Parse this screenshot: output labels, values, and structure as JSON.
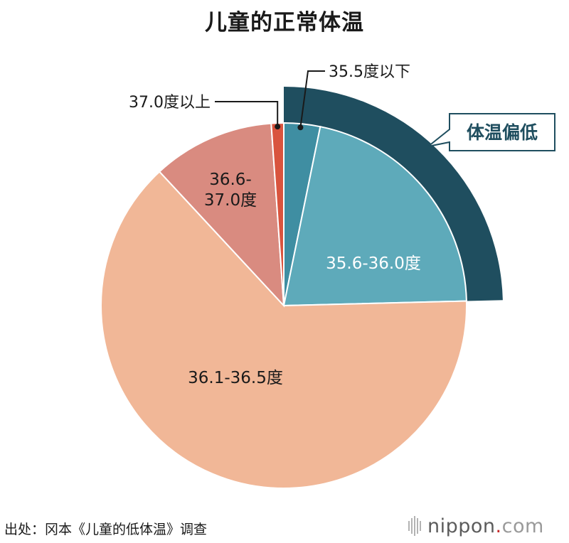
{
  "chart_data": {
    "type": "pie",
    "title": "儿童的正常体温",
    "unit": "%",
    "slices": [
      {
        "label": "35.5度以下",
        "value": 3.2,
        "color": "#3f8ea2",
        "label_style": "callout"
      },
      {
        "label": "35.6-36.0度",
        "value": 21.4,
        "color": "#5eaaba",
        "label_style": "inside-white"
      },
      {
        "label": "36.1-36.5度",
        "value": 63.5,
        "color": "#f1b797",
        "label_style": "inside-dark"
      },
      {
        "label": "36.6-37.0度",
        "value": 10.8,
        "color": "#d98b80",
        "label_style": "inside-dark"
      },
      {
        "label": "37.0度以上",
        "value": 1.1,
        "color": "#d9543e",
        "label_style": "callout"
      }
    ],
    "highlight": {
      "label": "体温偏低",
      "covers": [
        "35.5度以下",
        "35.6-36.0度"
      ],
      "color": "#1f4e5f"
    }
  },
  "source": "出处：冈本《儿童的低体温》调查",
  "logo": {
    "word": "nippon",
    "dot": ".",
    "tld": "com"
  }
}
